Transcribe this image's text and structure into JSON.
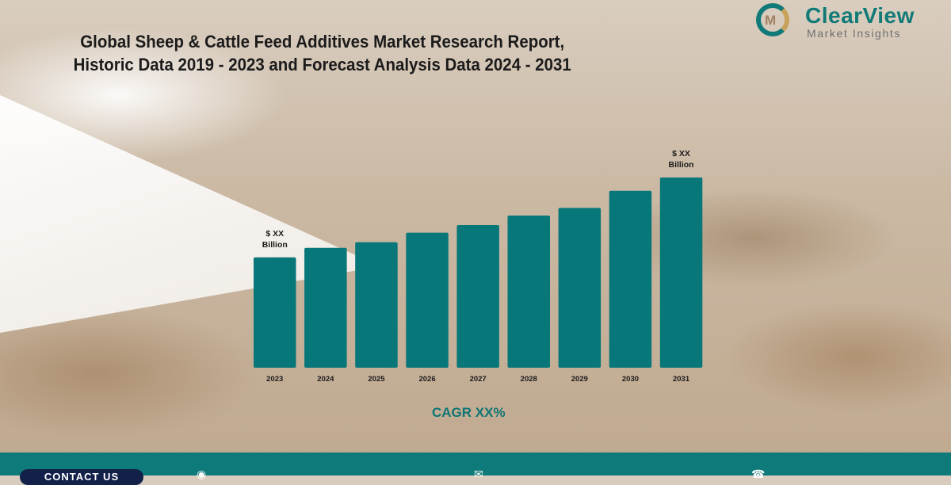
{
  "title_line1": "Global Sheep & Cattle Feed Additives Market Research Report,",
  "title_line2": "Historic Data 2019 - 2023 and Forecast Analysis Data 2024 - 2031",
  "logo": {
    "name": "ClearView",
    "tagline": "Market Insights"
  },
  "cagr": "CAGR XX%",
  "footer": {
    "contact_label": "CONTACT US",
    "icons": [
      "globe-icon",
      "email-icon",
      "phone-icon"
    ],
    "color": "#0f7a7a"
  },
  "chart_data": {
    "type": "bar",
    "categories": [
      "2023",
      "2024",
      "2025",
      "2026",
      "2027",
      "2028",
      "2029",
      "2030",
      "2031"
    ],
    "values": [
      58,
      63,
      66,
      71,
      75,
      80,
      84,
      93,
      100
    ],
    "value_units": "relative (no axis printed)",
    "data_labels": {
      "2023": [
        "$ XX",
        "Billion"
      ],
      "2031": [
        "$ XX",
        "Billion"
      ]
    },
    "bar_color": "#07777a",
    "ylim": [
      0,
      100
    ],
    "grid": false,
    "legend": "none"
  }
}
